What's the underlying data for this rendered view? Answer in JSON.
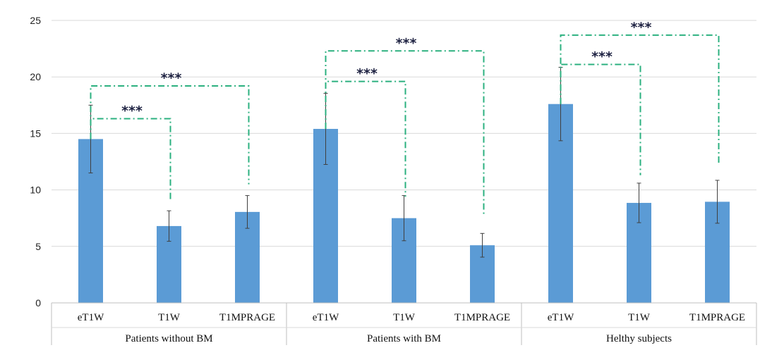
{
  "chart_data": {
    "type": "bar",
    "ylim": [
      0,
      25
    ],
    "yticks": [
      0,
      5,
      10,
      15,
      20,
      25
    ],
    "grid": true,
    "groups": [
      {
        "name": "Patients without BM",
        "categories": [
          "eT1W",
          "T1W",
          "T1MPRAGE"
        ],
        "values": [
          14.5,
          6.8,
          8.05
        ],
        "errors": [
          3.0,
          1.35,
          1.45
        ]
      },
      {
        "name": "Patients with BM",
        "categories": [
          "eT1W",
          "T1W",
          "T1MPRAGE"
        ],
        "values": [
          15.4,
          7.5,
          5.1
        ],
        "errors": [
          3.15,
          2.0,
          1.05
        ]
      },
      {
        "name": "Helthy subjects",
        "categories": [
          "eT1W",
          "T1W",
          "T1MPRAGE"
        ],
        "values": [
          17.6,
          8.85,
          8.95
        ],
        "errors": [
          3.25,
          1.75,
          1.9
        ]
      }
    ],
    "significance": [
      {
        "group": 0,
        "from": 0,
        "to": 1,
        "label": "***",
        "level": 16.3,
        "drop_to": 9.0
      },
      {
        "group": 0,
        "from": 0,
        "to": 2,
        "label": "***",
        "level": 19.2,
        "drop_to": 10.5
      },
      {
        "group": 1,
        "from": 0,
        "to": 1,
        "label": "***",
        "level": 19.6,
        "drop_to": 9.4
      },
      {
        "group": 1,
        "from": 0,
        "to": 2,
        "label": "***",
        "level": 22.3,
        "drop_to": 7.7
      },
      {
        "group": 2,
        "from": 0,
        "to": 1,
        "label": "***",
        "level": 21.1,
        "drop_to": 11.3
      },
      {
        "group": 2,
        "from": 0,
        "to": 2,
        "label": "***",
        "level": 23.7,
        "drop_to": 12.4
      }
    ],
    "colors": {
      "bar": "#5b9bd5",
      "bracket": "#2bb07f",
      "grid": "#d9d9d9",
      "error": "#404040"
    }
  }
}
